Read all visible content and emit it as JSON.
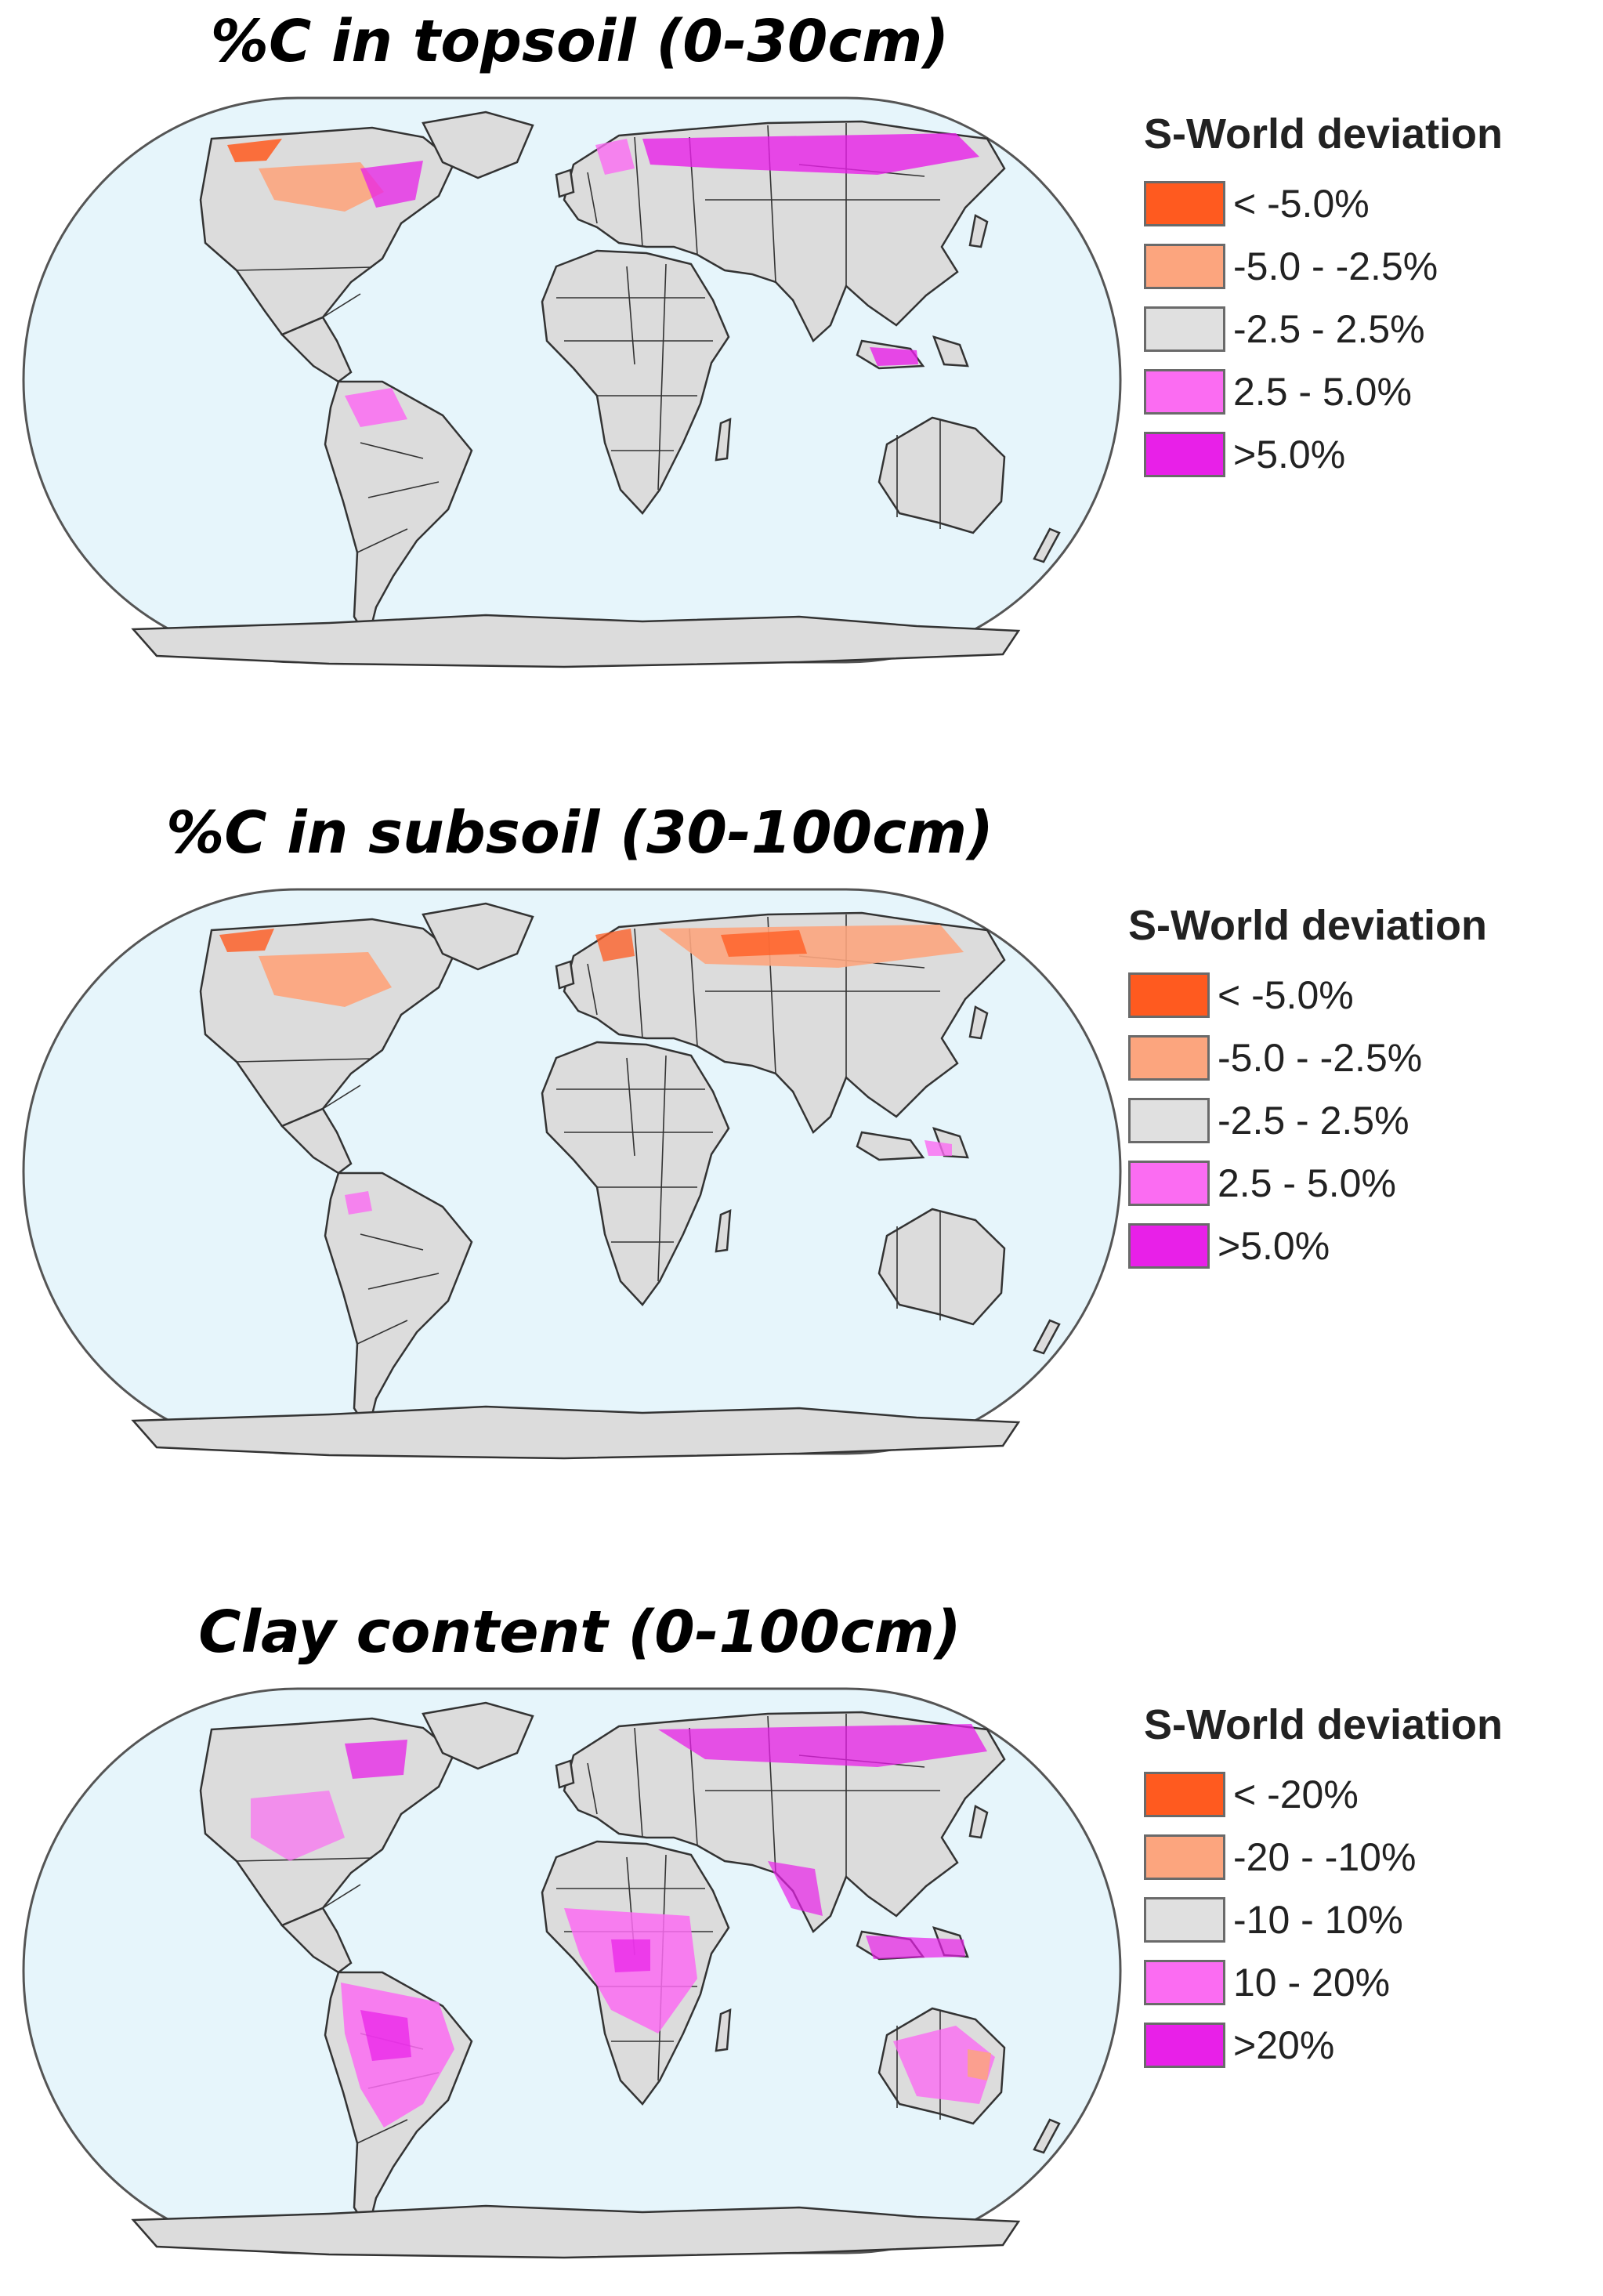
{
  "palette": {
    "ocean": "#e6f5fb",
    "land": "#dcdcdc",
    "border": "#333333",
    "strong_neg": "#ff5a1f",
    "neg": "#fca57e",
    "neutral": "#e0e0e0",
    "pos": "#fb6cf2",
    "strong_pos": "#e820e8"
  },
  "panels": [
    {
      "id": "topsoil",
      "title": "%C in topsoil (0-30cm)",
      "legend": {
        "title": "S-World deviation",
        "items": [
          {
            "label": "< -5.0%",
            "color": "#ff5a1f"
          },
          {
            "label": "-5.0 - -2.5%",
            "color": "#fca57e"
          },
          {
            "label": "-2.5 - 2.5%",
            "color": "#e0e0e0"
          },
          {
            "label": "2.5 - 5.0%",
            "color": "#fb6cf2"
          },
          {
            "label": ">5.0%",
            "color": "#e820e8"
          }
        ]
      }
    },
    {
      "id": "subsoil",
      "title": "%C in subsoil (30-100cm)",
      "legend": {
        "title": "S-World deviation",
        "items": [
          {
            "label": "< -5.0%",
            "color": "#ff5a1f"
          },
          {
            "label": "-5.0 - -2.5%",
            "color": "#fca57e"
          },
          {
            "label": "-2.5 - 2.5%",
            "color": "#e0e0e0"
          },
          {
            "label": "2.5 - 5.0%",
            "color": "#fb6cf2"
          },
          {
            "label": ">5.0%",
            "color": "#e820e8"
          }
        ]
      }
    },
    {
      "id": "clay",
      "title": "Clay content (0-100cm)",
      "legend": {
        "title": "S-World deviation",
        "items": [
          {
            "label": "< -20%",
            "color": "#ff5a1f"
          },
          {
            "label": "-20 - -10%",
            "color": "#fca57e"
          },
          {
            "label": "-10 - 10%",
            "color": "#e0e0e0"
          },
          {
            "label": "10 - 20%",
            "color": "#fb6cf2"
          },
          {
            "label": ">20%",
            "color": "#e820e8"
          }
        ]
      }
    }
  ]
}
